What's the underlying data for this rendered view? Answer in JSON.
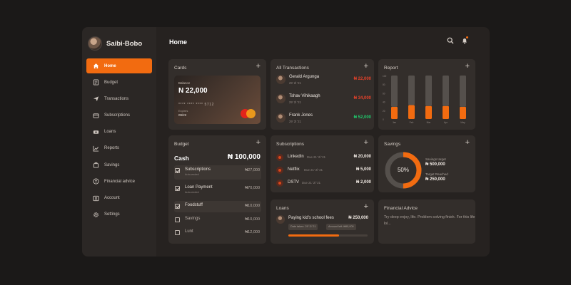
{
  "user": {
    "name": "Saibi-Bobo"
  },
  "page_title": "Home",
  "nav": [
    {
      "label": "Home",
      "icon": "home-icon",
      "active": true
    },
    {
      "label": "Budget",
      "icon": "budget-icon"
    },
    {
      "label": "Transactions",
      "icon": "transactions-icon"
    },
    {
      "label": "Subscriptions",
      "icon": "subscriptions-icon"
    },
    {
      "label": "Loans",
      "icon": "loans-icon"
    },
    {
      "label": "Reports",
      "icon": "reports-icon"
    },
    {
      "label": "Savings",
      "icon": "savings-icon"
    },
    {
      "label": "Financial advice",
      "icon": "financial-advice-icon"
    },
    {
      "label": "Account",
      "icon": "account-icon"
    },
    {
      "label": "Settings",
      "icon": "settings-icon"
    }
  ],
  "cards": {
    "title": "Cards",
    "plus": "+",
    "balance_label": "Balance",
    "balance": "N 22,000",
    "card_number": "**** **** **** 5712",
    "expiry_label": "Expires",
    "expiry": "09/22"
  },
  "transactions": {
    "title": "All Transactions",
    "plus": "+",
    "items": [
      {
        "name": "Gerald Argunga",
        "date": "29' 2l '21",
        "amount": "₦ 22,000",
        "color": "#e2412a"
      },
      {
        "name": "Tshav Vihikaagh",
        "date": "29' 2l '21",
        "amount": "₦ 34,000",
        "color": "#e2412a"
      },
      {
        "name": "Frank Jones",
        "date": "29' 2l '21",
        "amount": "₦ 52,000",
        "color": "#20c46a"
      }
    ]
  },
  "report": {
    "title": "Report",
    "plus": "+"
  },
  "chart_data": {
    "type": "bar",
    "categories": [
      "Jan",
      "Feb",
      "Mar",
      "Apr",
      "May"
    ],
    "series": [
      {
        "values": [
          28,
          32,
          30,
          30,
          28
        ]
      },
      {
        "values": [
          72,
          68,
          70,
          70,
          72
        ]
      }
    ],
    "ylim": [
      0,
      100
    ],
    "yticks": [
      "100",
      "80",
      "60",
      "40",
      "20",
      "0"
    ],
    "stacked": true,
    "colors": [
      "#f26b10",
      "#55504c"
    ],
    "xlabel": "",
    "ylabel": ""
  },
  "budget": {
    "title": "Budget",
    "plus": "+",
    "cash_label": "Cash",
    "cash_total": "₦ 100,000",
    "items": [
      {
        "name": "Subscriptions",
        "sub": "Auto-ended",
        "amount": "₦27,000",
        "checked": true,
        "highlight": true
      },
      {
        "name": "Loan Payment",
        "sub": "Auto-ended",
        "amount": "₦70,000",
        "checked": true,
        "highlight": false
      },
      {
        "name": "Foodstuff",
        "sub": "",
        "amount": "₦10,000",
        "checked": true,
        "highlight": true
      },
      {
        "name": "Savings",
        "sub": "",
        "amount": "₦10,000",
        "checked": false,
        "highlight": false
      },
      {
        "name": "Lunt",
        "sub": "",
        "amount": "₦12,000",
        "checked": false,
        "highlight": false
      }
    ]
  },
  "subscriptions": {
    "title": "Subscriptions",
    "plus": "+",
    "items": [
      {
        "name": "LinkedIn",
        "due": "Due 21' 2l '21",
        "amount": "₦ 20,000"
      },
      {
        "name": "Netflix",
        "due": "Due 21' 2l '21",
        "amount": "₦ 5,000"
      },
      {
        "name": "DSTV",
        "due": "Due 21' 2l '21",
        "amount": "₦ 2,000"
      }
    ]
  },
  "savings": {
    "title": "Savings",
    "plus": "+",
    "percent_label": "50%",
    "percent_value": 0.5,
    "target_label": "Savings target",
    "target": "₦ 500,000",
    "reached_label": "Target Reached",
    "reached": "₦ 250,000",
    "colors": {
      "fill": "#f26b10",
      "track": "#55504c"
    }
  },
  "loans": {
    "title": "Loans",
    "plus": "+",
    "name": "Paying kid's school fees",
    "amount": "₦ 250,000",
    "tag_date": "Date taken: 29' 2l '21",
    "tag_amount": "Amount left: ₦90,000",
    "progress": 0.64
  },
  "financial_advice": {
    "title": "Financial Advice",
    "text": "Try deep enjoy, life. Problem solving finish. For this life lol..."
  }
}
